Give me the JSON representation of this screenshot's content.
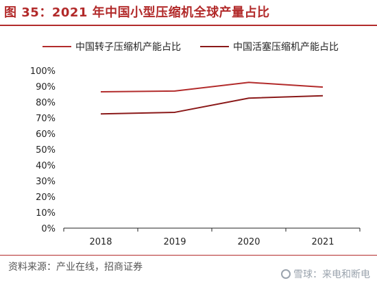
{
  "figure": {
    "title": "图 35：2021 年中国小型压缩机全球产量占比",
    "source": "资料来源：产业在线，招商证券",
    "watermark": "雪球：来电和断电"
  },
  "colors": {
    "title": "#b22a2a",
    "series_1": "#b22a2a",
    "series_2": "#8a1818",
    "axis": "#222222"
  },
  "chart_data": {
    "type": "line",
    "title": "",
    "xlabel": "",
    "ylabel": "",
    "categories": [
      "2018",
      "2019",
      "2020",
      "2021"
    ],
    "series": [
      {
        "name": "中国转子压缩机产能占比",
        "values": [
          86.5,
          87,
          92.5,
          89.5
        ]
      },
      {
        "name": "中国活塞压缩机产能占比",
        "values": [
          72.5,
          73.5,
          82.5,
          84
        ]
      }
    ],
    "ylim": [
      0,
      100
    ],
    "yticks": [
      0,
      10,
      20,
      30,
      40,
      50,
      60,
      70,
      80,
      90,
      100
    ],
    "ytick_labels": [
      "0%",
      "10%",
      "20%",
      "30%",
      "40%",
      "50%",
      "60%",
      "70%",
      "80%",
      "90%",
      "100%"
    ],
    "grid": false,
    "legend": "top"
  }
}
